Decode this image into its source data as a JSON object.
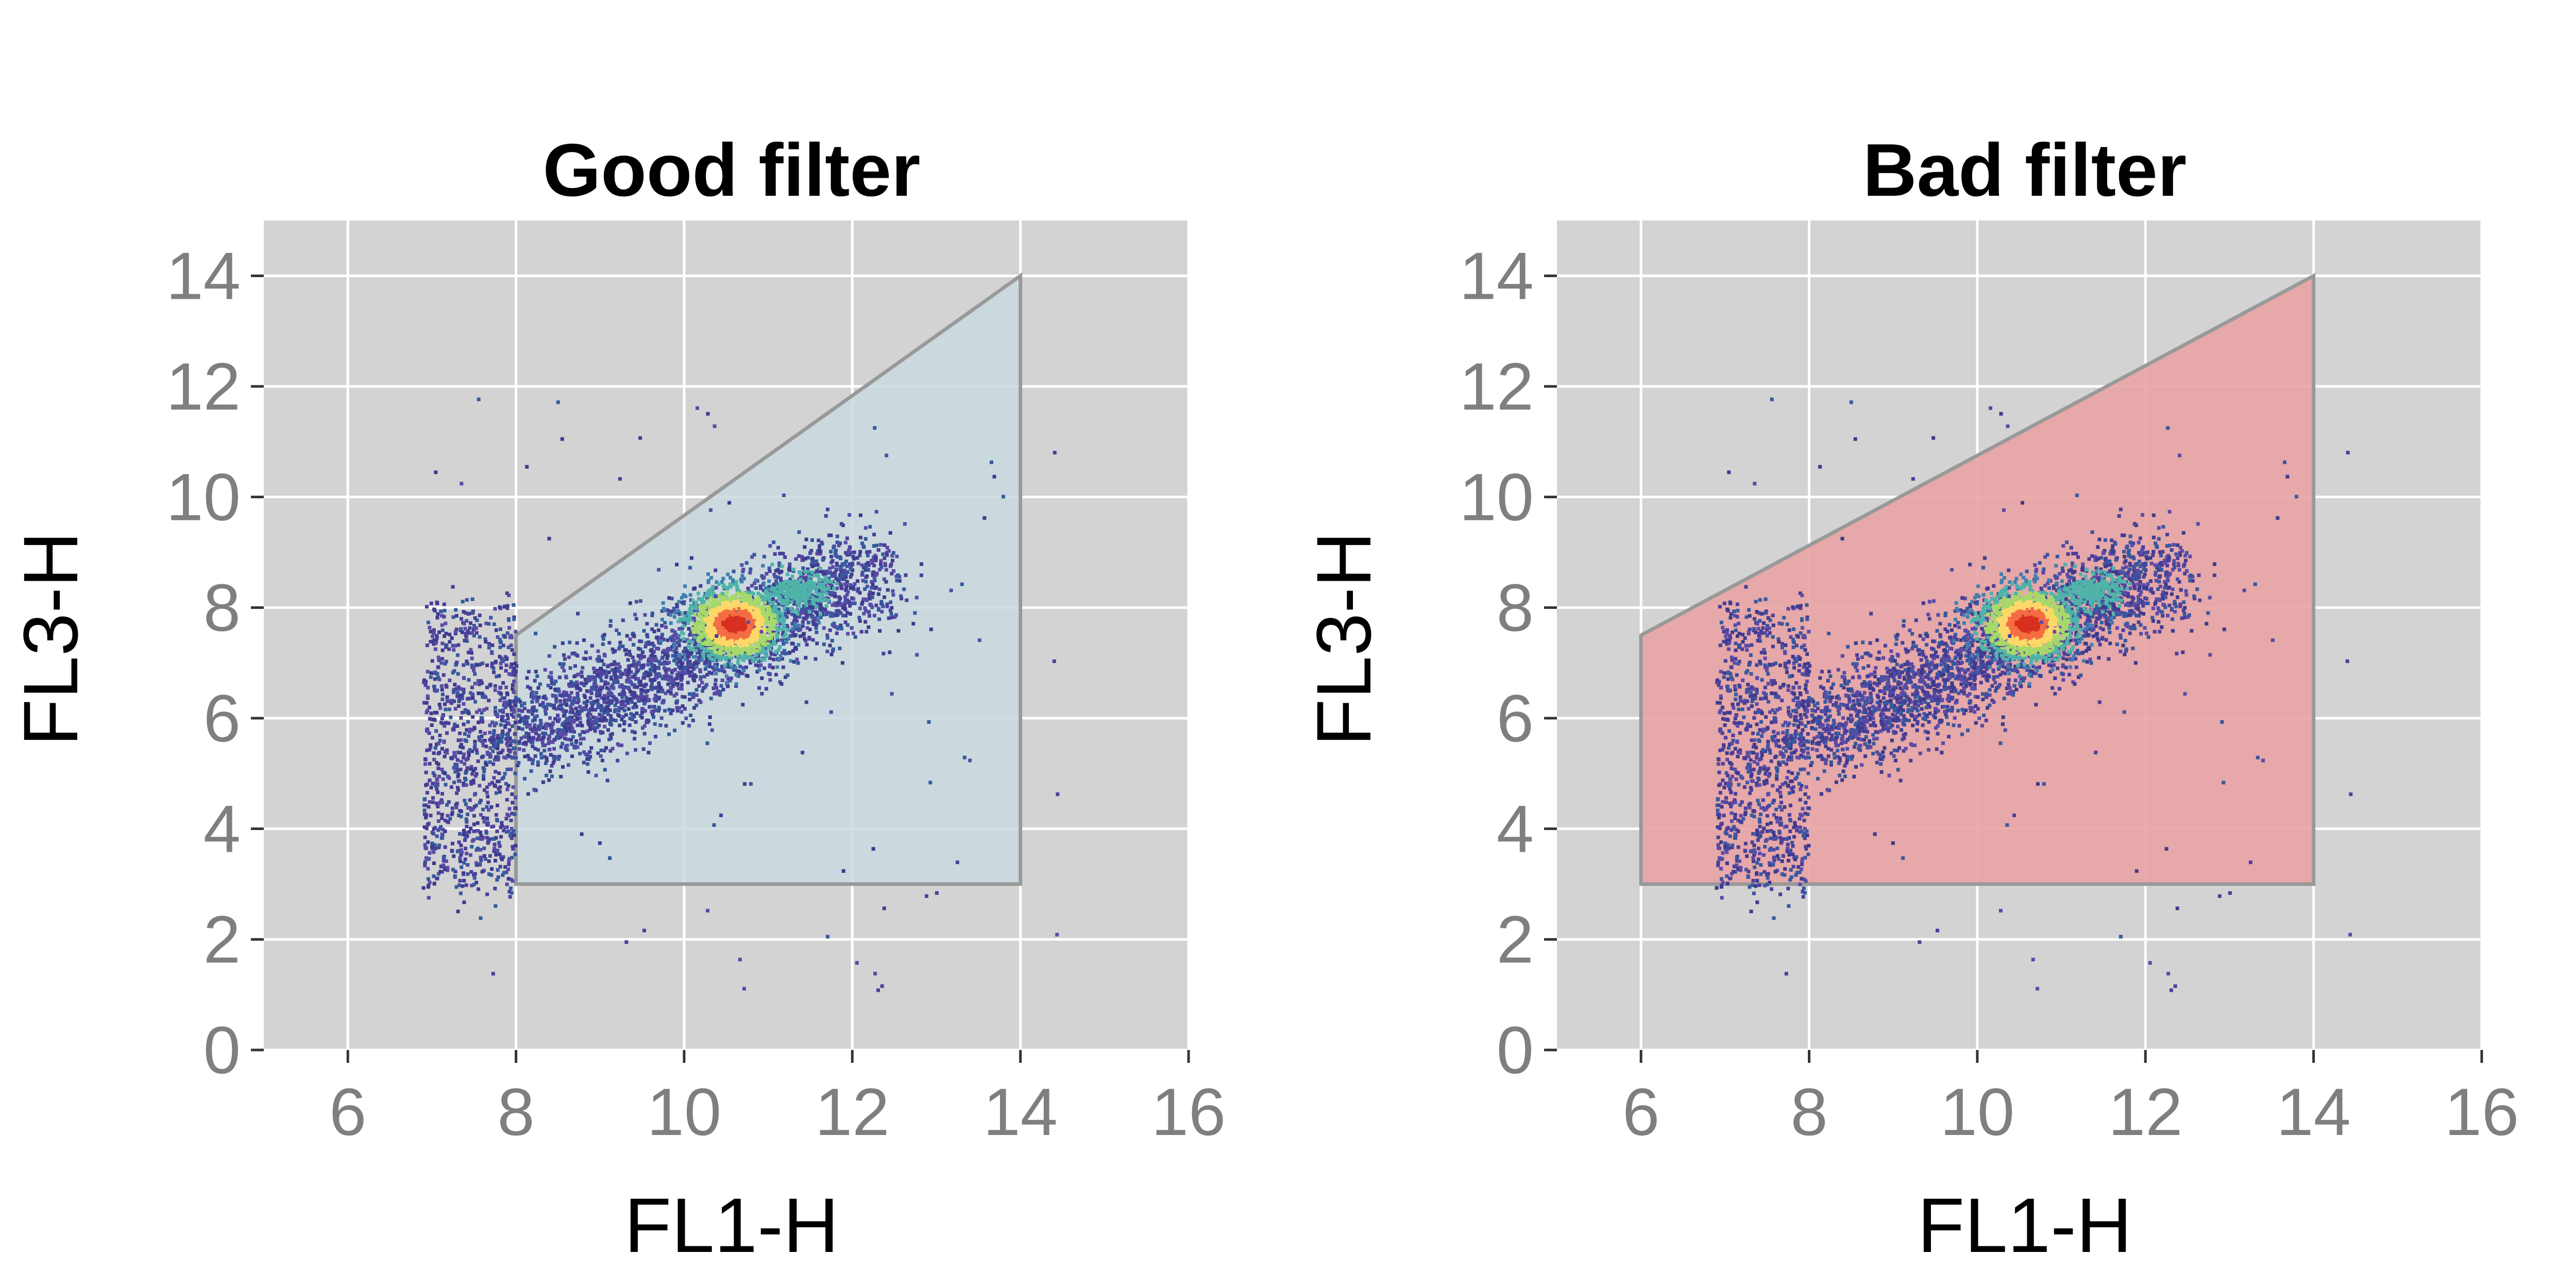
{
  "chart_data": [
    {
      "type": "scatter",
      "title": "Good filter",
      "xlabel": "FL1-H",
      "ylabel": "FL3-H",
      "xlim": [
        5,
        16
      ],
      "ylim": [
        0,
        15
      ],
      "xticks": [
        6,
        8,
        10,
        12,
        14,
        16
      ],
      "yticks": [
        0,
        2,
        4,
        6,
        8,
        10,
        12,
        14
      ],
      "grid": true,
      "background": "#d3d3d3",
      "gate_color": "#c9d9df",
      "gate_polygon": [
        [
          8,
          3
        ],
        [
          8,
          7.5
        ],
        [
          14,
          14
        ],
        [
          14,
          3
        ]
      ],
      "density_clusters": [
        {
          "center": [
            10.6,
            7.7
          ],
          "spread": [
            0.35,
            0.4
          ],
          "note": "dense core"
        },
        {
          "center": [
            11.4,
            8.3
          ],
          "spread": [
            0.2,
            0.2
          ],
          "note": "secondary lobe"
        },
        {
          "x_range": [
            6.9,
            8.0
          ],
          "y_range": [
            3,
            8
          ],
          "note": "low FL1 column"
        }
      ]
    },
    {
      "type": "scatter",
      "title": "Bad filter",
      "xlabel": "FL1-H",
      "ylabel": "FL3-H",
      "xlim": [
        5,
        16
      ],
      "ylim": [
        0,
        15
      ],
      "xticks": [
        6,
        8,
        10,
        12,
        14,
        16
      ],
      "yticks": [
        0,
        2,
        4,
        6,
        8,
        10,
        12,
        14
      ],
      "grid": true,
      "background": "#d3d3d3",
      "gate_color": "#e8a3a3",
      "gate_polygon": [
        [
          6,
          3
        ],
        [
          6,
          7.5
        ],
        [
          14,
          14
        ],
        [
          14,
          3
        ]
      ],
      "density_clusters": [
        {
          "center": [
            10.6,
            7.7
          ],
          "spread": [
            0.35,
            0.4
          ],
          "note": "dense core"
        },
        {
          "center": [
            11.4,
            8.3
          ],
          "spread": [
            0.2,
            0.2
          ],
          "note": "secondary lobe"
        },
        {
          "x_range": [
            6.9,
            8.0
          ],
          "y_range": [
            3,
            8
          ],
          "note": "low FL1 column"
        }
      ]
    }
  ]
}
